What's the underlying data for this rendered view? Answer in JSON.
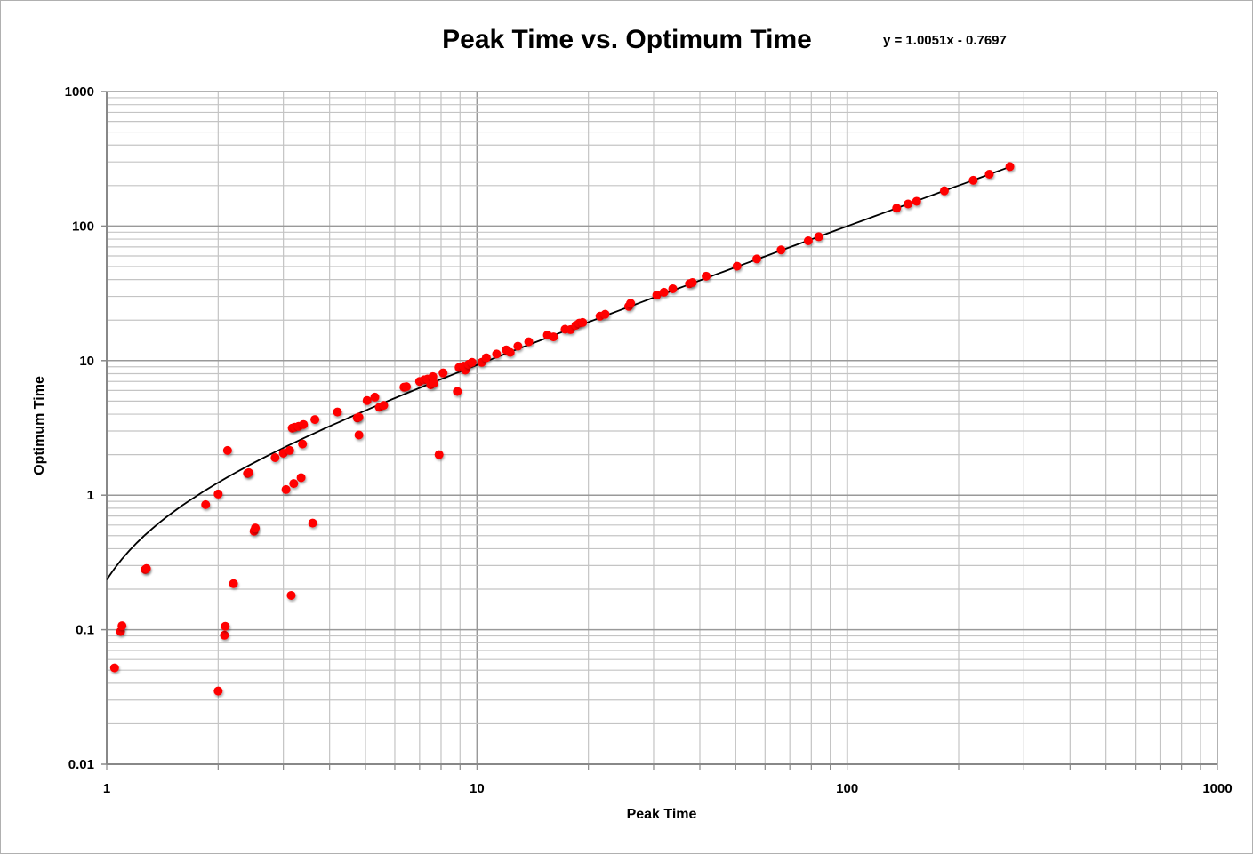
{
  "chart_data": {
    "type": "scatter",
    "title": "Peak Time vs. Optimum Time",
    "annotation": "y = 1.0051x - 0.7697",
    "xlabel": "Peak Time",
    "ylabel": "Optimum Time",
    "xscale": "log",
    "yscale": "log",
    "xlim": [
      1,
      1000
    ],
    "ylim": [
      0.01,
      1000
    ],
    "x_ticks": [
      "1",
      "10",
      "100",
      "1000"
    ],
    "y_ticks": [
      "0.01",
      "0.1",
      "1",
      "10",
      "100",
      "1000"
    ],
    "grid": true,
    "legend": "none",
    "marker_color": "#ff0000",
    "trendline": {
      "type": "linear",
      "slope": 1.0051,
      "intercept": -0.7697,
      "color": "#000000",
      "x_range": [
        1,
        275
      ]
    },
    "points": [
      [
        1.05,
        0.052
      ],
      [
        1.09,
        0.097
      ],
      [
        1.1,
        0.107
      ],
      [
        1.27,
        0.28
      ],
      [
        1.28,
        0.285
      ],
      [
        1.85,
        0.85
      ],
      [
        2.0,
        0.035
      ],
      [
        2.0,
        1.02
      ],
      [
        2.08,
        0.091
      ],
      [
        2.09,
        0.106
      ],
      [
        2.12,
        2.15
      ],
      [
        2.2,
        0.22
      ],
      [
        2.4,
        1.45
      ],
      [
        2.42,
        1.47
      ],
      [
        2.5,
        0.54
      ],
      [
        2.52,
        0.57
      ],
      [
        2.85,
        1.9
      ],
      [
        3.0,
        2.05
      ],
      [
        3.05,
        1.1
      ],
      [
        3.12,
        2.15
      ],
      [
        3.15,
        0.18
      ],
      [
        3.17,
        3.15
      ],
      [
        3.2,
        1.22
      ],
      [
        3.22,
        3.2
      ],
      [
        3.3,
        3.25
      ],
      [
        3.35,
        1.35
      ],
      [
        3.38,
        2.4
      ],
      [
        3.4,
        3.35
      ],
      [
        3.6,
        0.62
      ],
      [
        3.65,
        3.65
      ],
      [
        4.2,
        4.15
      ],
      [
        4.75,
        3.75
      ],
      [
        4.8,
        3.8
      ],
      [
        4.8,
        2.8
      ],
      [
        5.05,
        5.05
      ],
      [
        5.3,
        5.35
      ],
      [
        5.45,
        4.5
      ],
      [
        5.6,
        4.65
      ],
      [
        6.35,
        6.35
      ],
      [
        6.45,
        6.4
      ],
      [
        7.0,
        7.0
      ],
      [
        7.2,
        7.2
      ],
      [
        7.35,
        7.3
      ],
      [
        7.5,
        6.6
      ],
      [
        7.6,
        7.6
      ],
      [
        7.65,
        6.8
      ],
      [
        7.9,
        2.0
      ],
      [
        8.1,
        8.1
      ],
      [
        8.85,
        5.9
      ],
      [
        8.95,
        8.9
      ],
      [
        9.2,
        9.1
      ],
      [
        9.3,
        8.5
      ],
      [
        9.5,
        9.4
      ],
      [
        9.7,
        9.7
      ],
      [
        10.3,
        9.7
      ],
      [
        10.6,
        10.5
      ],
      [
        11.3,
        11.2
      ],
      [
        12.0,
        12.0
      ],
      [
        12.3,
        11.5
      ],
      [
        12.9,
        12.8
      ],
      [
        13.8,
        13.8
      ],
      [
        15.5,
        15.5
      ],
      [
        16.1,
        15.0
      ],
      [
        17.3,
        17.1
      ],
      [
        17.9,
        17.0
      ],
      [
        18.5,
        18.3
      ],
      [
        18.9,
        19.0
      ],
      [
        19.3,
        19.2
      ],
      [
        21.5,
        21.4
      ],
      [
        22.2,
        22.1
      ],
      [
        25.7,
        25.3
      ],
      [
        26.0,
        26.7
      ],
      [
        30.6,
        30.7
      ],
      [
        32.0,
        32.2
      ],
      [
        33.8,
        34.2
      ],
      [
        37.5,
        37.3
      ],
      [
        38.2,
        38.0
      ],
      [
        41.6,
        42.4
      ],
      [
        50.4,
        50.3
      ],
      [
        57.0,
        57.0
      ],
      [
        66.3,
        66.5
      ],
      [
        78.5,
        77.7
      ],
      [
        83.8,
        83.3
      ],
      [
        136,
        136
      ],
      [
        146,
        146
      ],
      [
        154,
        153
      ],
      [
        183,
        183
      ],
      [
        219,
        219
      ],
      [
        242,
        243
      ],
      [
        275,
        277
      ]
    ]
  }
}
